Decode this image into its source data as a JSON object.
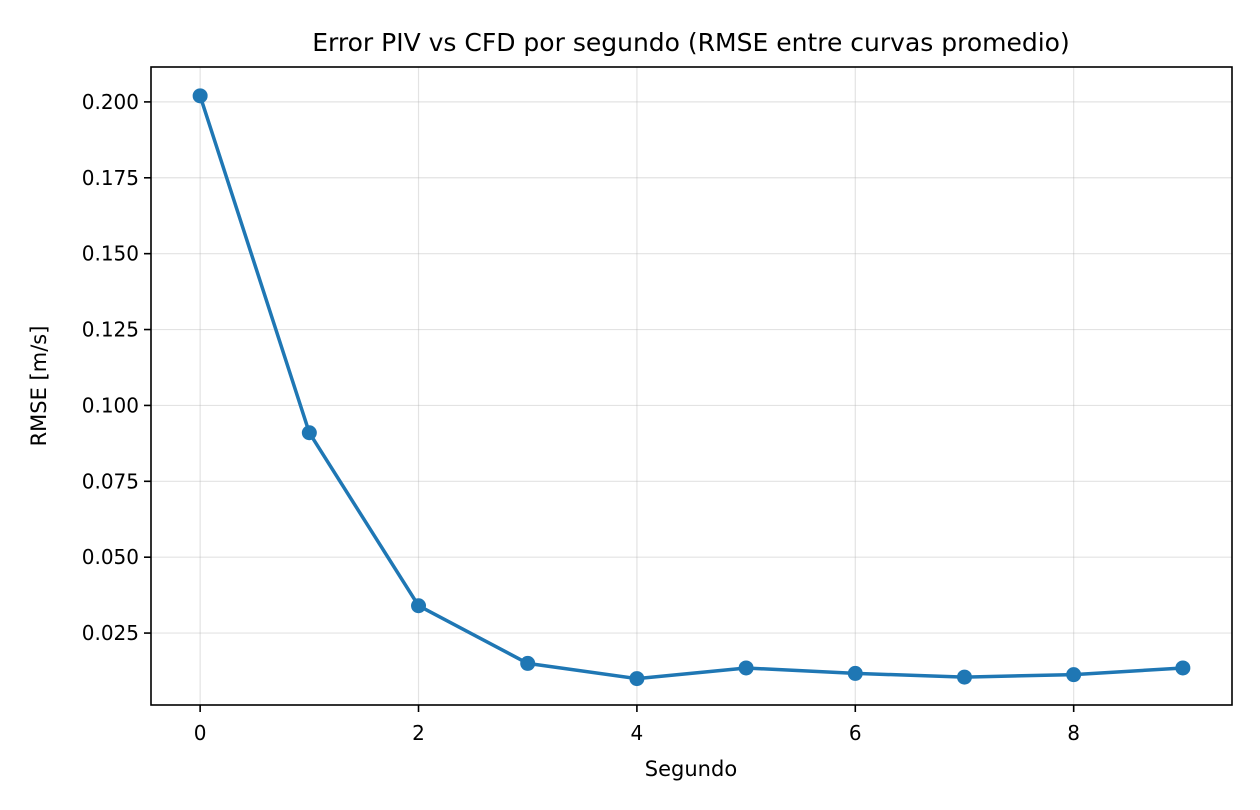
{
  "chart_data": {
    "type": "line",
    "title": "Error PIV vs CFD por segundo (RMSE entre curvas promedio)",
    "xlabel": "Segundo",
    "ylabel": "RMSE [m/s]",
    "x": [
      0,
      1,
      2,
      3,
      4,
      5,
      6,
      7,
      8,
      9
    ],
    "series": [
      {
        "values": [
          0.202,
          0.091,
          0.034,
          0.015,
          0.01,
          0.0135,
          0.0117,
          0.0105,
          0.0113,
          0.0135
        ],
        "color": "#1f77b4",
        "marker": "circle"
      }
    ],
    "xlim": [
      -0.45,
      9.45
    ],
    "ylim": [
      0.0013,
      0.2115
    ],
    "xticks": [
      0,
      2,
      4,
      6,
      8
    ],
    "xtick_labels": [
      "0",
      "2",
      "4",
      "6",
      "8"
    ],
    "yticks": [
      0.025,
      0.05,
      0.075,
      0.1,
      0.125,
      0.15,
      0.175,
      0.2
    ],
    "ytick_labels": [
      "0.025",
      "0.050",
      "0.075",
      "0.100",
      "0.125",
      "0.150",
      "0.175",
      "0.200"
    ],
    "grid": true,
    "legend": false
  }
}
